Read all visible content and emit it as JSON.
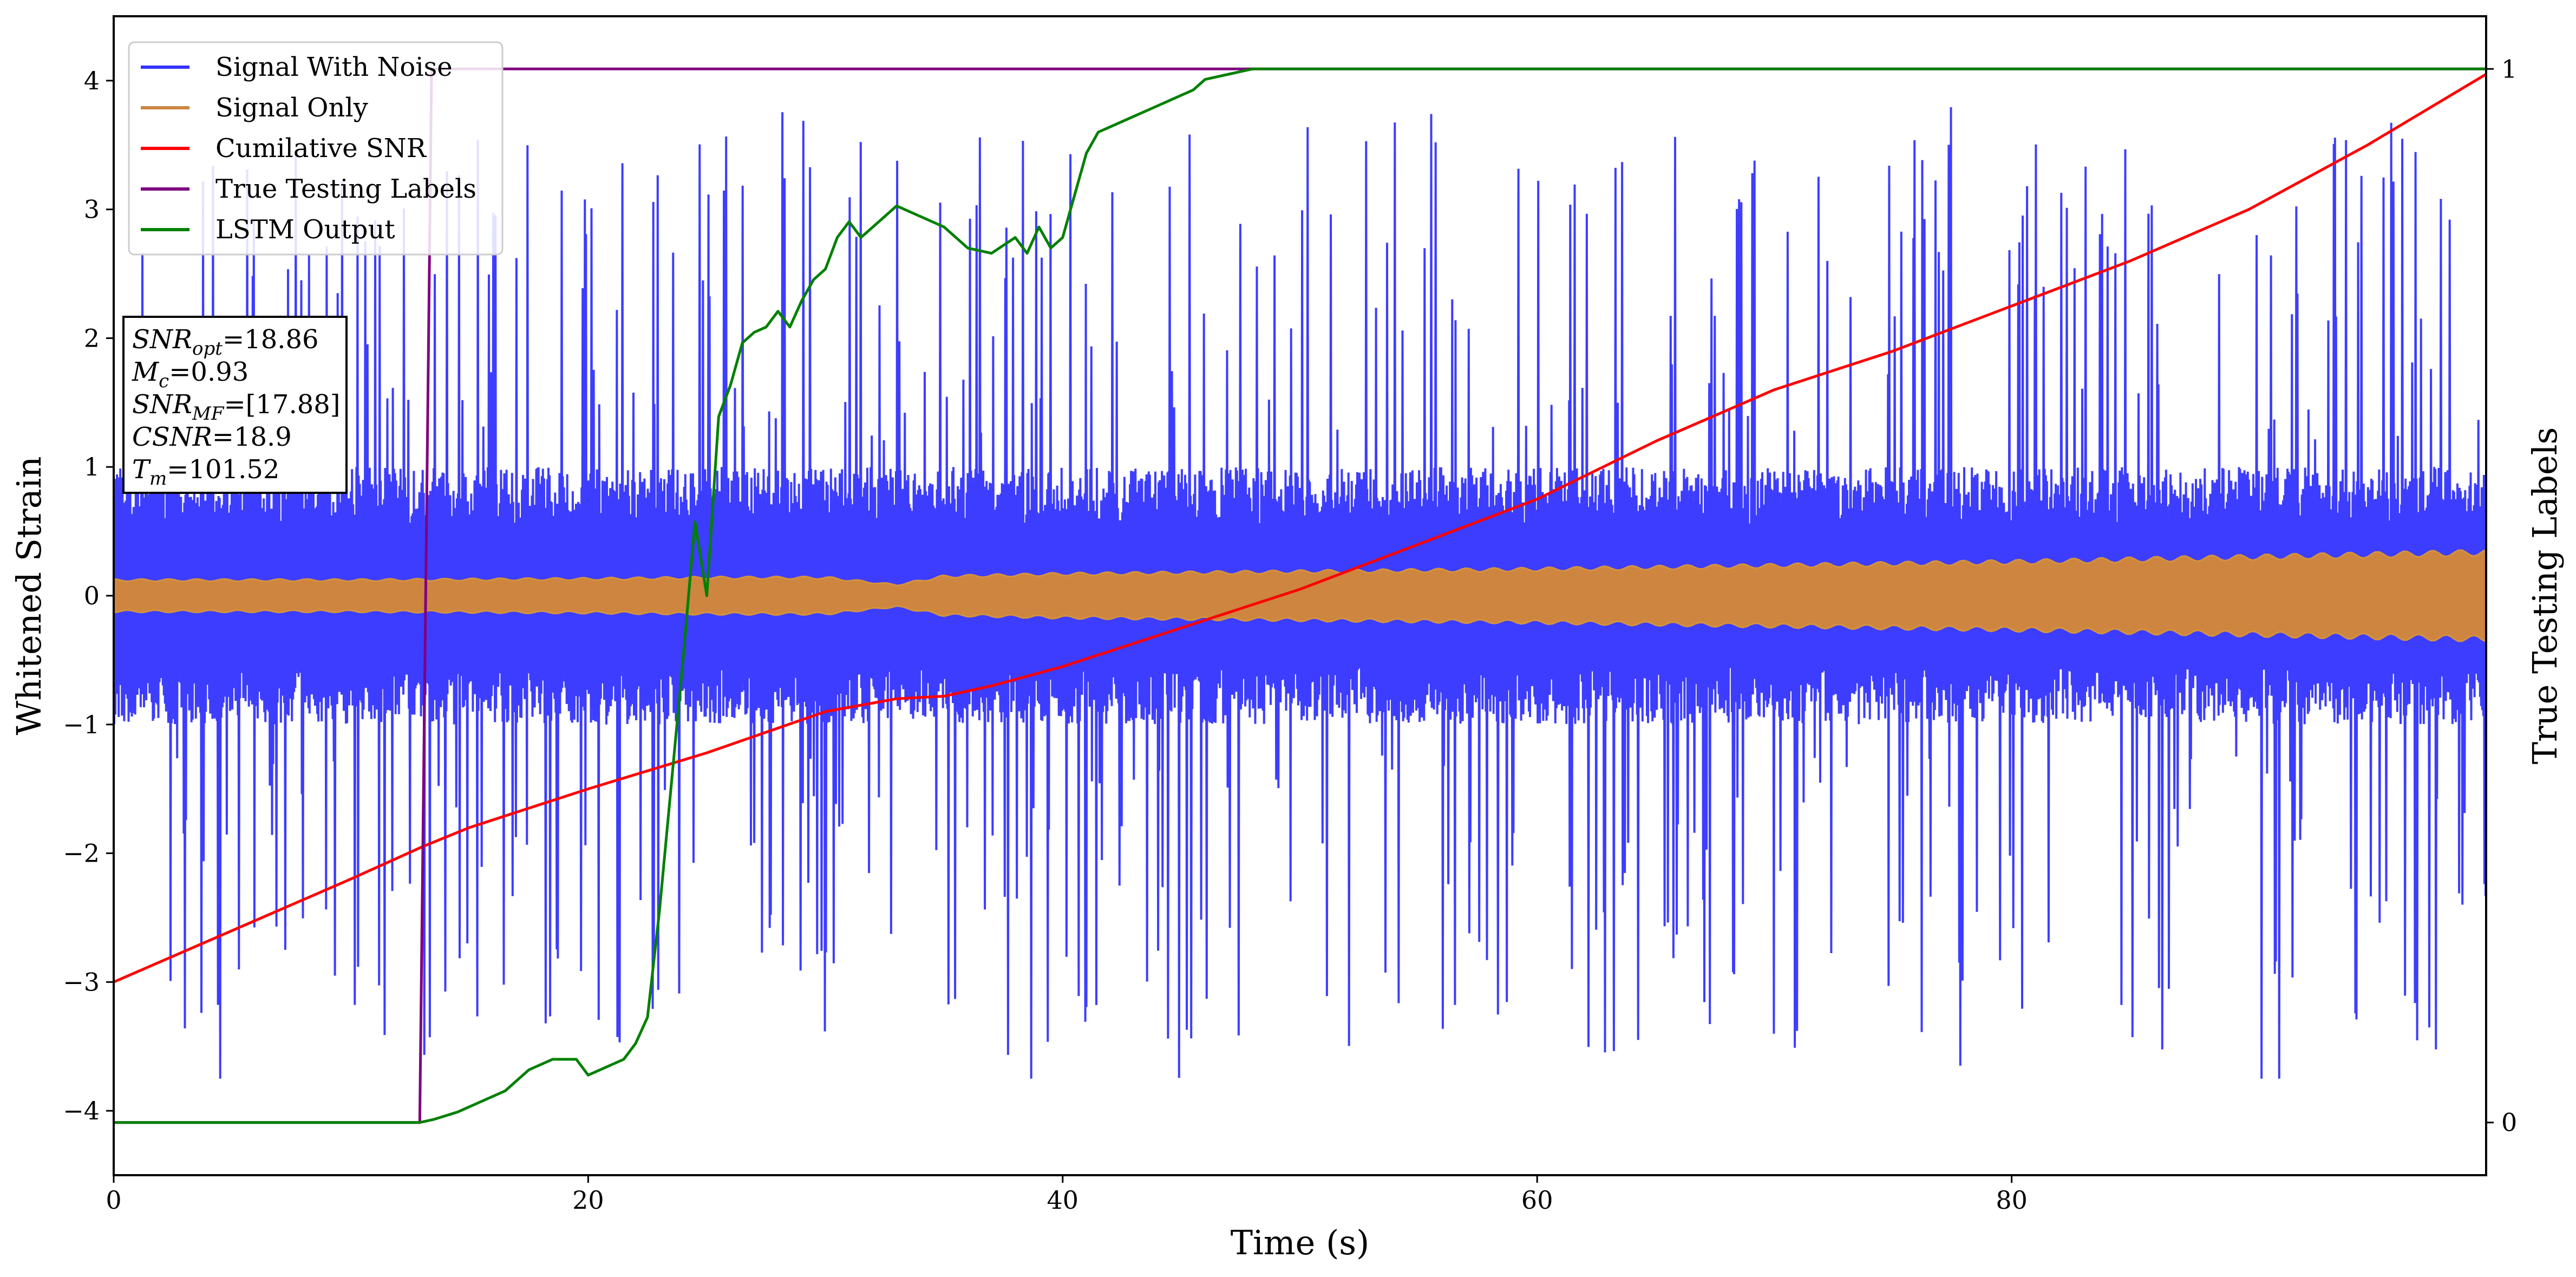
{
  "chart_data": {
    "type": "line",
    "xlabel": "Time (s)",
    "ylabel": "Whitened Strain",
    "y2label": "True Testing Labels",
    "xlim": [
      0,
      100
    ],
    "ylim": [
      -4.5,
      4.5
    ],
    "y2lim": [
      -0.05,
      1.05
    ],
    "x_ticks": [
      0,
      20,
      40,
      60,
      80
    ],
    "y_ticks": [
      -4,
      -3,
      -2,
      -1,
      0,
      1,
      2,
      3,
      4
    ],
    "y2_ticks": [
      0,
      1
    ],
    "x_tick_labels": [
      "0",
      "20",
      "40",
      "60",
      "80"
    ],
    "y_tick_labels": [
      "−4",
      "−3",
      "−2",
      "−1",
      "0",
      "1",
      "2",
      "3",
      "4"
    ],
    "y2_tick_labels": [
      "0",
      "1"
    ],
    "grid": false,
    "legend_position": "top-left",
    "annotation_lines": [
      {
        "base": "SNR",
        "sub": "opt",
        "text": "=18.86"
      },
      {
        "base": "M",
        "sub": "c",
        "text": "=0.93"
      },
      {
        "base": "SNR",
        "sub": "MF",
        "text": "=[17.88]"
      },
      {
        "base": "CSNR",
        "sub": "",
        "text": "=18.9"
      },
      {
        "base": "T",
        "sub": "m",
        "text": "=101.52"
      }
    ],
    "series": [
      {
        "name": "Signal With Noise",
        "color": "#3333ff",
        "axis": "left",
        "description_kind": "noise_band",
        "band_core": [
          -1.0,
          1.0
        ],
        "spike_range": [
          -3.75,
          4.1
        ]
      },
      {
        "name": "Signal Only",
        "color": "#cd853f",
        "axis": "left",
        "description_kind": "envelope",
        "x": [
          0,
          10,
          20,
          25,
          30,
          33,
          35,
          40,
          50,
          60,
          70,
          80,
          90,
          100
        ],
        "amplitude": [
          0.13,
          0.13,
          0.14,
          0.15,
          0.15,
          0.09,
          0.16,
          0.18,
          0.2,
          0.22,
          0.25,
          0.28,
          0.32,
          0.36
        ]
      },
      {
        "name": "Cumilative SNR",
        "color": "#ff0000",
        "axis": "left",
        "x": [
          0,
          5,
          10,
          13,
          15,
          20,
          25,
          30,
          33,
          35,
          37,
          40,
          45,
          50,
          55,
          60,
          65,
          70,
          75,
          80,
          85,
          90,
          95,
          100
        ],
        "y": [
          -3.0,
          -2.6,
          -2.2,
          -1.95,
          -1.8,
          -1.5,
          -1.22,
          -0.9,
          -0.8,
          -0.78,
          -0.7,
          -0.55,
          -0.25,
          0.05,
          0.4,
          0.75,
          1.2,
          1.6,
          1.9,
          2.25,
          2.6,
          3.0,
          3.5,
          4.05
        ]
      },
      {
        "name": "True Testing Labels",
        "color": "#800080",
        "axis": "right",
        "x": [
          0,
          12.9,
          13.4,
          100
        ],
        "y": [
          0,
          0,
          1,
          1
        ]
      },
      {
        "name": "LSTM Output",
        "color": "#008000",
        "axis": "right",
        "x": [
          0,
          12.9,
          13.5,
          14.5,
          15.5,
          16.5,
          17.5,
          18.5,
          19.5,
          20.0,
          20.5,
          21.5,
          22.0,
          22.5,
          23.0,
          23.5,
          24.0,
          24.5,
          25.0,
          25.5,
          26.0,
          26.5,
          27.0,
          27.5,
          28.0,
          28.5,
          29.0,
          29.5,
          30.0,
          30.5,
          31.0,
          31.5,
          32.0,
          32.5,
          33.0,
          34.0,
          35.0,
          35.5,
          36.0,
          37.0,
          38.0,
          38.5,
          39.0,
          39.5,
          40.0,
          40.5,
          41.0,
          41.5,
          42.0,
          43.0,
          44.0,
          44.5,
          45.0,
          45.5,
          46.0,
          47.0,
          48.0,
          50.0,
          100
        ],
        "y": [
          0,
          0,
          0.003,
          0.01,
          0.02,
          0.03,
          0.05,
          0.06,
          0.06,
          0.045,
          0.05,
          0.06,
          0.075,
          0.1,
          0.2,
          0.32,
          0.44,
          0.57,
          0.5,
          0.67,
          0.7,
          0.74,
          0.75,
          0.755,
          0.77,
          0.755,
          0.78,
          0.8,
          0.81,
          0.84,
          0.855,
          0.84,
          0.85,
          0.86,
          0.87,
          0.86,
          0.85,
          0.84,
          0.83,
          0.825,
          0.84,
          0.825,
          0.85,
          0.83,
          0.84,
          0.88,
          0.92,
          0.94,
          0.945,
          0.955,
          0.965,
          0.97,
          0.975,
          0.98,
          0.99,
          0.995,
          1.0,
          1.0,
          1.0
        ]
      }
    ]
  }
}
